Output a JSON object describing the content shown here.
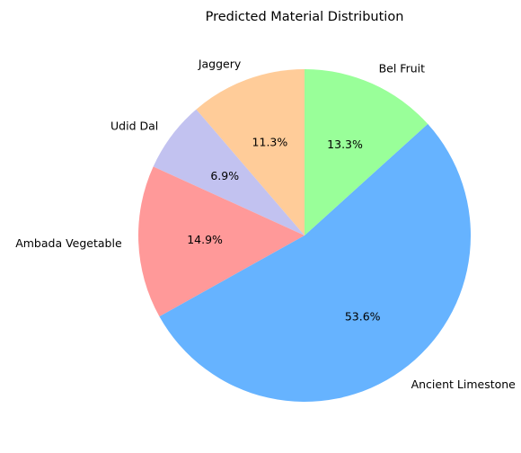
{
  "chart_data": {
    "type": "pie",
    "title": "Predicted Material Distribution",
    "start_angle_deg": 90,
    "direction": "counterclockwise",
    "slices": [
      {
        "label": "Jaggery",
        "value": 11.3,
        "pct_label": "11.3%",
        "color": "#ffcc99"
      },
      {
        "label": "Udid Dal",
        "value": 6.9,
        "pct_label": "6.9%",
        "color": "#c2c2f0"
      },
      {
        "label": "Ambada Vegetable",
        "value": 14.9,
        "pct_label": "14.9%",
        "color": "#ff9999"
      },
      {
        "label": "Ancient Limestone",
        "value": 53.6,
        "pct_label": "53.6%",
        "color": "#66b3ff"
      },
      {
        "label": "Bel Fruit",
        "value": 13.3,
        "pct_label": "13.3%",
        "color": "#99ff99"
      }
    ]
  }
}
